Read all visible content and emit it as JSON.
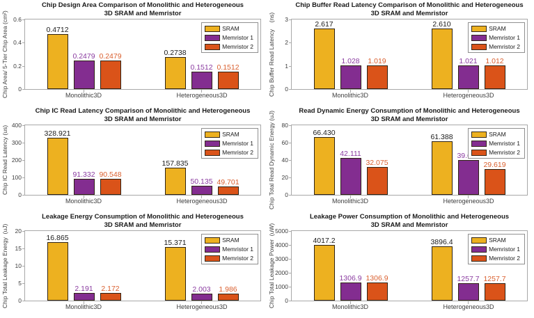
{
  "figure": {
    "background": "#ffffff"
  },
  "palette": {
    "sram": "#EDB120",
    "memristor1": "#832D90",
    "memristor2": "#DA5319",
    "axis": "#a8a8a8",
    "text": "#3d3d3d"
  },
  "legend": {
    "position": "top-right",
    "entries": [
      {
        "label": "SRAM",
        "color": "#EDB120"
      },
      {
        "label": "Memristor 1",
        "color": "#832D90"
      },
      {
        "label": "Memristor 2",
        "color": "#DA5319"
      }
    ]
  },
  "chart_data": [
    {
      "type": "bar",
      "title": "Chip Design Area Comparison of Monolithic and Heterogeneous\n3D SRAM and Memristor",
      "ylabel": "Chip Area/ 5-Tier Chip Area (cm²)",
      "xlabel": "",
      "ylim": [
        0,
        0.6
      ],
      "yticks": [
        "0",
        "0.2",
        "0.4",
        "0.6"
      ],
      "grid": false,
      "legend_position": "top-right",
      "categories": [
        "Monolithic3D",
        "Heterogeneous3D"
      ],
      "series": [
        {
          "name": "SRAM",
          "color": "#EDB120",
          "label_color": "#1a1a1a",
          "values": [
            0.4712,
            0.2738
          ],
          "labels": [
            "0.4712",
            "0.2738"
          ]
        },
        {
          "name": "Memristor 1",
          "color": "#832D90",
          "label_color": "#8A3BA0",
          "values": [
            0.2479,
            0.1512
          ],
          "labels": [
            "0.2479",
            "0.1512"
          ]
        },
        {
          "name": "Memristor 2",
          "color": "#DA5319",
          "label_color": "#DA5F2E",
          "values": [
            0.2479,
            0.1512
          ],
          "labels": [
            "0.2479",
            "0.1512"
          ]
        }
      ]
    },
    {
      "type": "bar",
      "title": "Chip Buffer Read Latency Comparison of Monolithic and Heterogeneous\n3D SRAM and Memristor",
      "ylabel": "Chip Buffer Read Latency    (ns)",
      "xlabel": "",
      "ylim": [
        0,
        3
      ],
      "yticks": [
        "0",
        "1",
        "2",
        "3"
      ],
      "grid": false,
      "legend_position": "top-right",
      "categories": [
        "Monolithic3D",
        "Heterogeneous3D"
      ],
      "series": [
        {
          "name": "SRAM",
          "color": "#EDB120",
          "label_color": "#1a1a1a",
          "values": [
            2.617,
            2.61
          ],
          "labels": [
            "2.617",
            "2.610"
          ]
        },
        {
          "name": "Memristor 1",
          "color": "#832D90",
          "label_color": "#8A3BA0",
          "values": [
            1.028,
            1.021
          ],
          "labels": [
            "1.028",
            "1.021"
          ]
        },
        {
          "name": "Memristor 2",
          "color": "#DA5319",
          "label_color": "#DA5F2E",
          "values": [
            1.019,
            1.012
          ],
          "labels": [
            "1.019",
            "1.012"
          ]
        }
      ]
    },
    {
      "type": "bar",
      "title": "Chip IC Read Latency Comparison of Monolithic and Heterogeneous\n3D SRAM and Memristor",
      "ylabel": "Chip IC Read Latency (us)",
      "xlabel": "",
      "ylim": [
        0,
        400
      ],
      "yticks": [
        "0",
        "100",
        "200",
        "300",
        "400"
      ],
      "grid": false,
      "legend_position": "top-right",
      "categories": [
        "Monolithic3D",
        "Heterogeneous3D"
      ],
      "series": [
        {
          "name": "SRAM",
          "color": "#EDB120",
          "label_color": "#1a1a1a",
          "values": [
            328.921,
            157.835
          ],
          "labels": [
            "328.921",
            "157.835"
          ]
        },
        {
          "name": "Memristor 1",
          "color": "#832D90",
          "label_color": "#8A3BA0",
          "values": [
            91.332,
            50.135
          ],
          "labels": [
            "91.332",
            "50.135"
          ]
        },
        {
          "name": "Memristor 2",
          "color": "#DA5319",
          "label_color": "#DA5F2E",
          "values": [
            90.548,
            49.701
          ],
          "labels": [
            "90.548",
            "49.701"
          ]
        }
      ]
    },
    {
      "type": "bar",
      "title": "Read Dynamic Energy Consumption of Monolithic and Heterogeneous\n3D SRAM and Memristor",
      "ylabel": "Chip Total Read Dynamic Energy (uJ)",
      "xlabel": "",
      "ylim": [
        0,
        80
      ],
      "yticks": [
        "0",
        "20",
        "40",
        "60",
        "80"
      ],
      "grid": false,
      "legend_position": "top-right",
      "categories": [
        "Monolithic3D",
        "Heterogeneous3D"
      ],
      "series": [
        {
          "name": "SRAM",
          "color": "#EDB120",
          "label_color": "#1a1a1a",
          "values": [
            66.43,
            61.388
          ],
          "labels": [
            "66.430",
            "61.388"
          ]
        },
        {
          "name": "Memristor 1",
          "color": "#832D90",
          "label_color": "#8A3BA0",
          "values": [
            42.111,
            39.655
          ],
          "labels": [
            "42.111",
            "39.655"
          ]
        },
        {
          "name": "Memristor 2",
          "color": "#DA5319",
          "label_color": "#DA5F2E",
          "values": [
            32.075,
            29.619
          ],
          "labels": [
            "32.075",
            "29.619"
          ]
        }
      ]
    },
    {
      "type": "bar",
      "title": "Leakage Energy Consumption of Monolithic and Heterogeneous\n3D SRAM and Memristor",
      "ylabel": "Chip Total Leakage Energy  (uJ)",
      "xlabel": "",
      "ylim": [
        0,
        20
      ],
      "yticks": [
        "0",
        "5",
        "10",
        "15",
        "20"
      ],
      "grid": false,
      "legend_position": "top-right",
      "categories": [
        "Monolithic3D",
        "Heterogeneous3D"
      ],
      "series": [
        {
          "name": "SRAM",
          "color": "#EDB120",
          "label_color": "#1a1a1a",
          "values": [
            16.865,
            15.371
          ],
          "labels": [
            "16.865",
            "15.371"
          ]
        },
        {
          "name": "Memristor 1",
          "color": "#832D90",
          "label_color": "#8A3BA0",
          "values": [
            2.191,
            2.003
          ],
          "labels": [
            "2.191",
            "2.003"
          ]
        },
        {
          "name": "Memristor 2",
          "color": "#DA5319",
          "label_color": "#DA5F2E",
          "values": [
            2.172,
            1.986
          ],
          "labels": [
            "2.172",
            "1.986"
          ]
        }
      ]
    },
    {
      "type": "bar",
      "title": "Leakage Power Consumption of Monolithic and Heterogeneous\n3D SRAM and Memristor",
      "ylabel": "Chip Total Leakage Power  (uW)",
      "xlabel": "",
      "ylim": [
        0,
        5000
      ],
      "yticks": [
        "0",
        "1000",
        "2000",
        "3000",
        "4000",
        "5000"
      ],
      "grid": false,
      "legend_position": "top-right",
      "categories": [
        "Monolithic3D",
        "Heterogeneous3D"
      ],
      "series": [
        {
          "name": "SRAM",
          "color": "#EDB120",
          "label_color": "#1a1a1a",
          "values": [
            4017.2,
            3896.4
          ],
          "labels": [
            "4017.2",
            "3896.4"
          ]
        },
        {
          "name": "Memristor 1",
          "color": "#832D90",
          "label_color": "#8A3BA0",
          "values": [
            1306.9,
            1257.7
          ],
          "labels": [
            "1306.9",
            "1257.7"
          ]
        },
        {
          "name": "Memristor 2",
          "color": "#DA5319",
          "label_color": "#DA5F2E",
          "values": [
            1306.9,
            1257.7
          ],
          "labels": [
            "1306.9",
            "1257.7"
          ]
        }
      ]
    }
  ]
}
